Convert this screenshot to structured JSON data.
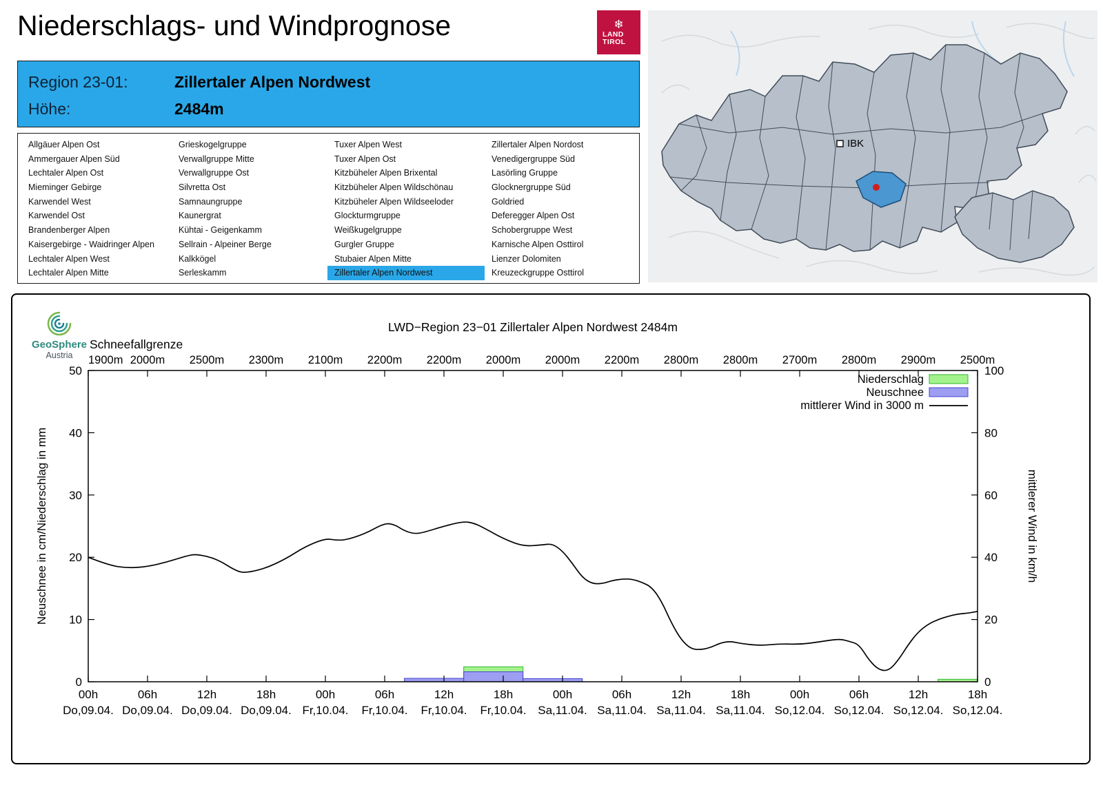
{
  "header": {
    "title": "Niederschlags- und Windprognose",
    "logo": {
      "land": "LAND",
      "tirol": "TIROL",
      "color": "#c01240"
    }
  },
  "icons": {
    "snowflake": "❄"
  },
  "region_info": {
    "region_label": "Region 23-01:",
    "region_value": "Zillertaler Alpen Nordwest",
    "altitude_label": "Höhe:",
    "altitude_value": "2484m",
    "accent_color": "#2aa7e8"
  },
  "map": {
    "city_label": "IBK",
    "highlight_color": "#4a97d2",
    "marker_color": "#cf1f1f"
  },
  "region_list": {
    "selected": "Zillertaler Alpen Nordwest",
    "columns": [
      [
        "Allgäuer Alpen Ost",
        "Ammergauer Alpen Süd",
        "Lechtaler Alpen Ost",
        "Mieminger Gebirge",
        "Karwendel West",
        "Karwendel Ost",
        "Brandenberger Alpen",
        "Kaisergebirge - Waidringer Alpen",
        "Lechtaler Alpen West",
        "Lechtaler Alpen Mitte"
      ],
      [
        "Grieskogelgruppe",
        "Verwallgruppe Mitte",
        "Verwallgruppe Ost",
        "Silvretta Ost",
        "Samnaungruppe",
        "Kaunergrat",
        "Kühtai - Geigenkamm",
        "Sellrain - Alpeiner Berge",
        "Kalkkögel",
        "Serleskamm"
      ],
      [
        "Tuxer Alpen West",
        "Tuxer Alpen Ost",
        "Kitzbüheler Alpen Brixental",
        "Kitzbüheler Alpen Wildschönau",
        "Kitzbüheler Alpen Wildseeloder",
        "Glockturmgruppe",
        "Weißkugelgruppe",
        "Gurgler Gruppe",
        "Stubaier Alpen Mitte",
        "Zillertaler Alpen Nordwest"
      ],
      [
        "Zillertaler Alpen Nordost",
        "Venedigergruppe Süd",
        "Lasörling Gruppe",
        "Glocknergruppe Süd",
        "Goldried",
        "Deferegger Alpen Ost",
        "Schobergruppe West",
        "Karnische Alpen Osttirol",
        "Lienzer Dolomiten",
        "Kreuzeckgruppe Osttirol"
      ]
    ]
  },
  "geosphere": {
    "name": "GeoSphere",
    "country": "Austria"
  },
  "chart_data": {
    "type": "line+bar",
    "title": "LWD−Region 23−01 Zillertaler Alpen Nordwest 2484m",
    "snowline_label": "Schneefallgrenze",
    "snowline_values": [
      "1900m",
      "2000m",
      "2500m",
      "2300m",
      "2100m",
      "2200m",
      "2200m",
      "2000m",
      "2000m",
      "2200m",
      "2800m",
      "2800m",
      "2700m",
      "2800m",
      "2900m",
      "2500m"
    ],
    "ylabel_left": "Neuschnee in cm/Niederschlag in mm",
    "ylabel_right": "mittlerer Wind in km/h",
    "ylim_left": [
      0,
      50
    ],
    "ylim_right": [
      0,
      100
    ],
    "yticks_left": [
      0,
      10,
      20,
      30,
      40,
      50
    ],
    "yticks_right": [
      0,
      20,
      40,
      60,
      80,
      100
    ],
    "hours_span": 90,
    "x_ticks": [
      {
        "time": "00h",
        "date": "Do,09.04."
      },
      {
        "time": "06h",
        "date": "Do,09.04."
      },
      {
        "time": "12h",
        "date": "Do,09.04."
      },
      {
        "time": "18h",
        "date": "Do,09.04."
      },
      {
        "time": "00h",
        "date": "Fr,10.04."
      },
      {
        "time": "06h",
        "date": "Fr,10.04."
      },
      {
        "time": "12h",
        "date": "Fr,10.04."
      },
      {
        "time": "18h",
        "date": "Fr,10.04."
      },
      {
        "time": "00h",
        "date": "Sa,11.04."
      },
      {
        "time": "06h",
        "date": "Sa,11.04."
      },
      {
        "time": "12h",
        "date": "Sa,11.04."
      },
      {
        "time": "18h",
        "date": "Sa,11.04."
      },
      {
        "time": "00h",
        "date": "So,12.04."
      },
      {
        "time": "06h",
        "date": "So,12.04."
      },
      {
        "time": "12h",
        "date": "So,12.04."
      },
      {
        "time": "18h",
        "date": "So,12.04."
      }
    ],
    "legend": [
      {
        "label": "Niederschlag",
        "swatch": "box",
        "fill_key": "precip_fill",
        "stroke_key": "precip_stroke"
      },
      {
        "label": "Neuschnee",
        "swatch": "box",
        "fill_key": "snow_fill",
        "stroke_key": "snow_stroke"
      },
      {
        "label": "mittlerer Wind in 3000 m",
        "swatch": "line"
      }
    ],
    "colors": {
      "precip_fill": "#a4f28c",
      "precip_stroke": "#2eb82e",
      "snow_fill": "#9d9df2",
      "snow_stroke": "#4545cf",
      "wind": "#000000"
    },
    "precip_bars": [
      {
        "from": 32,
        "to": 38,
        "value": 0.5
      },
      {
        "from": 38,
        "to": 44,
        "value": 2.4
      },
      {
        "from": 44,
        "to": 50,
        "value": 0.45
      },
      {
        "from": 86,
        "to": 90,
        "value": 0.4
      }
    ],
    "snow_bars": [
      {
        "from": 32,
        "to": 38,
        "value": 0.55
      },
      {
        "from": 38,
        "to": 44,
        "value": 1.6
      },
      {
        "from": 44,
        "to": 50,
        "value": 0.5
      }
    ],
    "wind_points": [
      [
        0,
        40
      ],
      [
        2,
        37.5
      ],
      [
        4,
        36.5
      ],
      [
        6,
        37
      ],
      [
        8,
        38.5
      ],
      [
        10,
        40.5
      ],
      [
        11,
        41
      ],
      [
        13,
        39.5
      ],
      [
        15,
        35.5
      ],
      [
        16,
        35
      ],
      [
        18,
        36.5
      ],
      [
        20,
        39.5
      ],
      [
        22,
        43.5
      ],
      [
        24,
        46
      ],
      [
        25,
        45.5
      ],
      [
        26,
        45.5
      ],
      [
        28,
        47.5
      ],
      [
        30,
        51
      ],
      [
        31,
        50.5
      ],
      [
        32,
        48.5
      ],
      [
        33,
        47.5
      ],
      [
        34,
        48
      ],
      [
        36,
        50
      ],
      [
        38,
        51.5
      ],
      [
        39,
        51
      ],
      [
        40,
        49.5
      ],
      [
        42,
        46
      ],
      [
        44,
        43.5
      ],
      [
        46,
        44
      ],
      [
        47,
        44.3
      ],
      [
        48,
        42
      ],
      [
        49,
        38
      ],
      [
        50,
        33.5
      ],
      [
        51,
        31.5
      ],
      [
        52,
        31.5
      ],
      [
        53,
        32.5
      ],
      [
        54,
        33
      ],
      [
        55,
        33
      ],
      [
        56,
        32
      ],
      [
        57,
        30.5
      ],
      [
        58,
        26
      ],
      [
        59,
        19
      ],
      [
        60,
        13.5
      ],
      [
        61,
        10.5
      ],
      [
        62,
        10.3
      ],
      [
        63,
        11
      ],
      [
        64,
        12.5
      ],
      [
        65,
        13
      ],
      [
        66,
        12.3
      ],
      [
        68,
        11.6
      ],
      [
        70,
        12.2
      ],
      [
        72,
        12
      ],
      [
        74,
        12.8
      ],
      [
        76,
        13.8
      ],
      [
        77,
        13
      ],
      [
        78,
        12
      ],
      [
        79,
        7
      ],
      [
        80,
        3.8
      ],
      [
        81,
        3.5
      ],
      [
        82,
        7
      ],
      [
        83,
        12
      ],
      [
        84,
        16
      ],
      [
        85,
        18.5
      ],
      [
        86,
        20
      ],
      [
        87,
        21
      ],
      [
        88,
        21.8
      ],
      [
        89,
        22
      ],
      [
        90,
        22.6
      ]
    ]
  }
}
